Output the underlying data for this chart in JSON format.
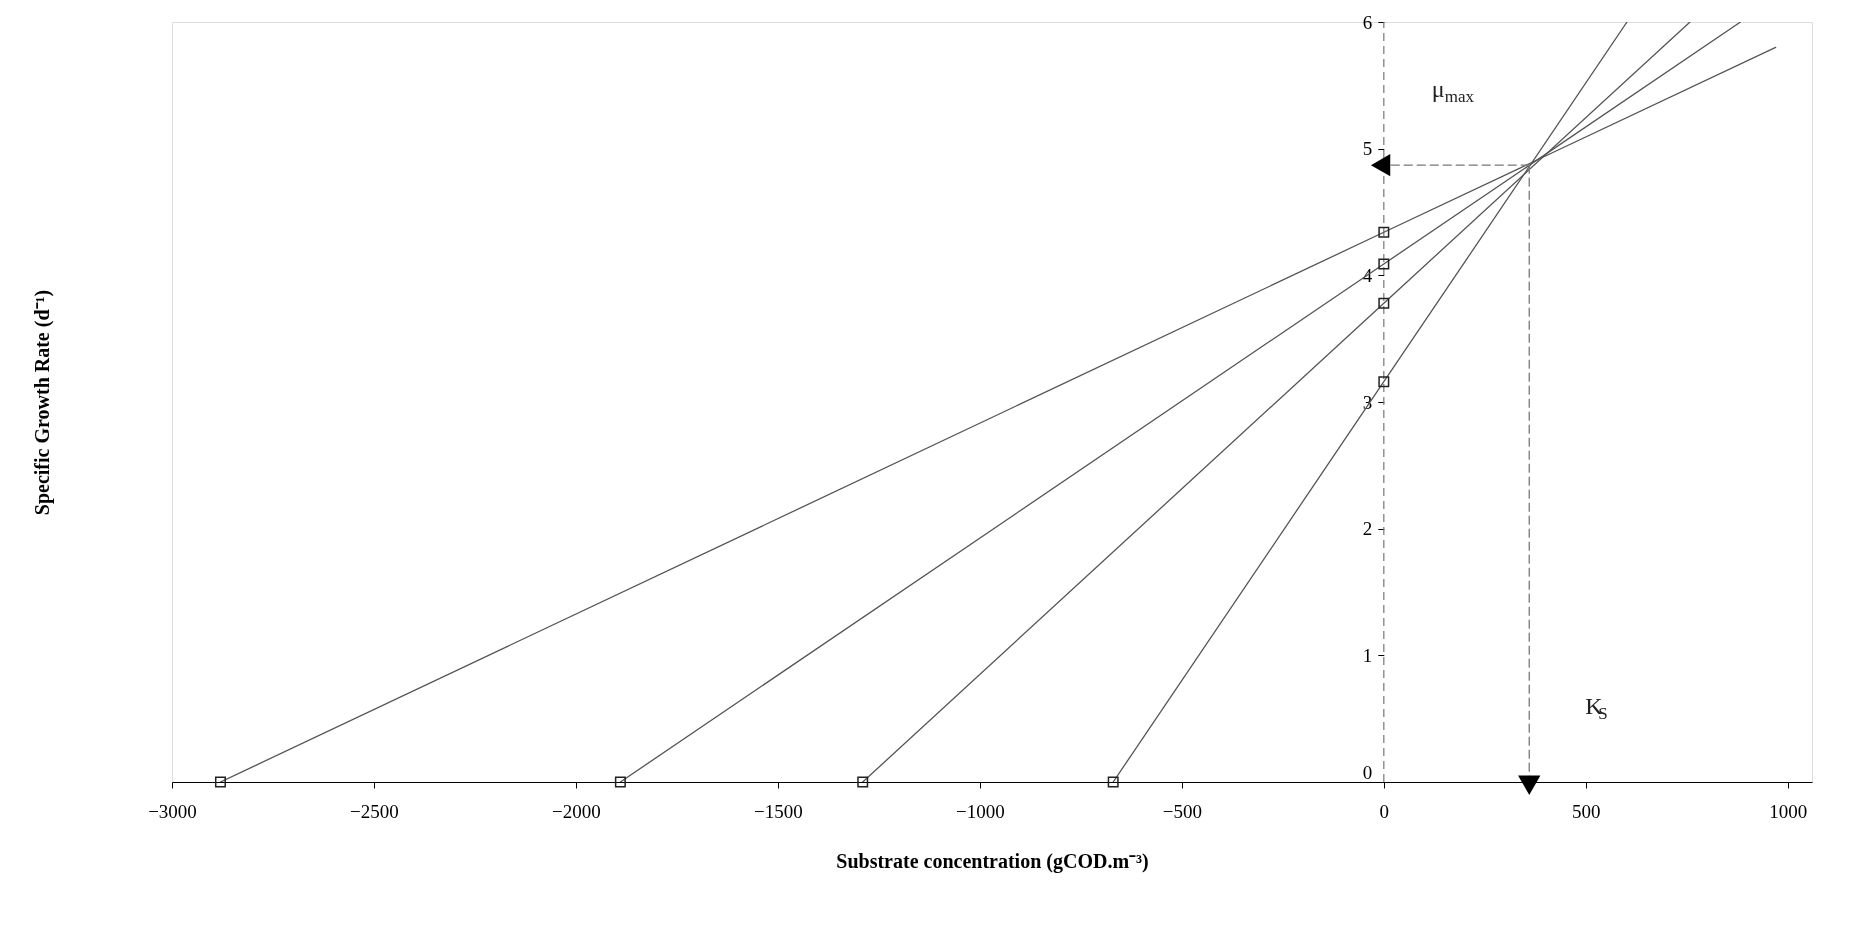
{
  "chart_data": {
    "type": "line",
    "xlabel": "Substrate concentration (gCOD.m⁻³)",
    "ylabel": "Specific Growth Rate (d⁻¹)",
    "xlim": [
      -3000,
      1060
    ],
    "ylim": [
      0,
      6
    ],
    "xticks": [
      -3000,
      -2500,
      -2000,
      -1500,
      -1000,
      -500,
      0,
      500,
      1000
    ],
    "yticks": [
      0,
      1,
      2,
      3,
      4,
      5,
      6
    ],
    "grid": false,
    "marker": "none",
    "line_style": "solid",
    "series": [
      {
        "color": "#555555",
        "x": [
          -2880,
          0,
          970
        ],
        "values": [
          0,
          4.34,
          5.8
        ]
      },
      {
        "color": "#555555",
        "x": [
          -1890,
          0,
          883
        ],
        "values": [
          0,
          4.09,
          6
        ]
      },
      {
        "color": "#555555",
        "x": [
          -1290,
          0,
          758
        ],
        "values": [
          0,
          3.78,
          6
        ]
      },
      {
        "color": "#555555",
        "x": [
          -670,
          0,
          602
        ],
        "values": [
          0,
          3.16,
          6
        ]
      },
      {
        "type": "scatter",
        "marker": "square",
        "color": "#222222",
        "x": [
          -2880,
          -1890,
          -1290,
          -670,
          0,
          0,
          0,
          0
        ],
        "values": [
          0,
          0,
          0,
          0,
          4.34,
          4.09,
          3.78,
          3.16
        ]
      },
      {
        "type": "line",
        "line_style": "dashed",
        "marker": "triangle",
        "color": "#777777",
        "x": [
          360,
          0
        ],
        "values": [
          4.87,
          4.87
        ]
      },
      {
        "type": "line",
        "line_style": "dashed",
        "marker": "triangle",
        "color": "#777777",
        "x": [
          360,
          360
        ],
        "values": [
          4.87,
          0
        ]
      }
    ],
    "ref_lines": [
      {
        "axis": "x",
        "value": 0,
        "line_style": "dashed",
        "color": "#777777"
      }
    ],
    "annotations": [
      "μ$_{max}$",
      "K$_{S}$"
    ]
  }
}
